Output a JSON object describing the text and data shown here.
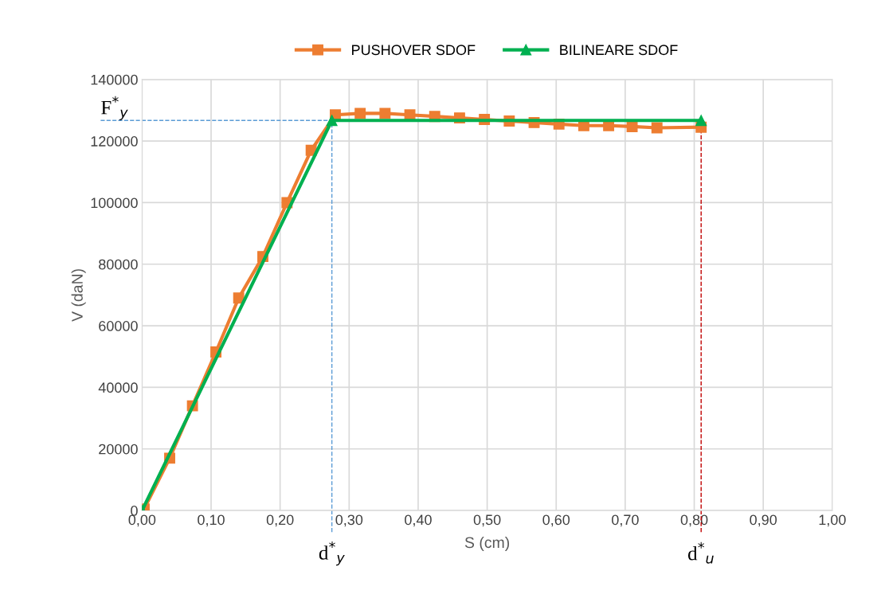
{
  "chart_data": {
    "type": "line",
    "xlabel": "S (cm)",
    "ylabel": "V (daN)",
    "xlim": [
      0,
      1
    ],
    "xticks": [
      {
        "value": 0,
        "label": "0,00"
      },
      {
        "value": 0.1,
        "label": "0,10"
      },
      {
        "value": 0.2,
        "label": "0,20"
      },
      {
        "value": 0.3,
        "label": "0,30"
      },
      {
        "value": 0.4,
        "label": "0,40"
      },
      {
        "value": 0.5,
        "label": "0,50"
      },
      {
        "value": 0.6,
        "label": "0,60"
      },
      {
        "value": 0.7,
        "label": "0,70"
      },
      {
        "value": 0.8,
        "label": "0,80"
      },
      {
        "value": 0.9,
        "label": "0,90"
      },
      {
        "value": 1,
        "label": "1,00"
      }
    ],
    "ylim": [
      0,
      140000
    ],
    "yticks": [
      0,
      20000,
      40000,
      60000,
      80000,
      100000,
      120000,
      140000
    ],
    "grid": true,
    "legend": "top",
    "line_style": "solid",
    "series": [
      {
        "name": "PUSHOVER SDOF",
        "color": "#ed7d31",
        "marker": "square",
        "x": [
          0.003,
          0.04,
          0.073,
          0.107,
          0.14,
          0.175,
          0.21,
          0.245,
          0.28,
          0.316,
          0.352,
          0.388,
          0.424,
          0.46,
          0.496,
          0.532,
          0.568,
          0.604,
          0.64,
          0.676,
          0.71,
          0.746,
          0.81
        ],
        "values": [
          500,
          17000,
          34000,
          51500,
          69000,
          82500,
          100000,
          117000,
          128500,
          129000,
          129000,
          128500,
          128000,
          127500,
          127000,
          126500,
          126000,
          125500,
          125000,
          125000,
          124700,
          124300,
          124500
        ]
      },
      {
        "name": "BILINEARE SDOF",
        "color": "#00b050",
        "marker": "triangle",
        "x": [
          0,
          0.275,
          0.81
        ],
        "values": [
          0,
          126700,
          126700
        ]
      }
    ],
    "ref_lines": [
      {
        "axis": "y",
        "value": 126700,
        "label": "F$^{*}$$_{y}$",
        "color": "#5b9bd5",
        "line_style": "dashed"
      },
      {
        "axis": "x",
        "value": 0.275,
        "label": "d$^{*}$$_{y}$",
        "color": "#5b9bd5",
        "line_style": "dashed"
      },
      {
        "axis": "x",
        "value": 0.81,
        "label": "d$^{*}$$_{u}$",
        "color": "#c00000",
        "line_style": "dashed"
      }
    ]
  }
}
